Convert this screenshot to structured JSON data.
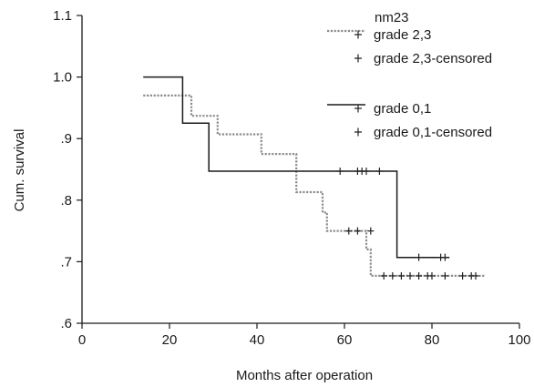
{
  "chart_data": {
    "type": "line",
    "subtype": "kaplan-meier step survival curves",
    "xlabel": "Months after operation",
    "ylabel": "Cum. survival",
    "xlim": [
      0,
      100
    ],
    "ylim": [
      0.6,
      1.1
    ],
    "x_ticks": [
      0,
      20,
      40,
      60,
      80,
      100
    ],
    "x_tick_labels": [
      "0",
      "20",
      "40",
      "60",
      "80",
      "100"
    ],
    "y_ticks": [
      0.6,
      0.7,
      0.8,
      0.9,
      1.0,
      1.1
    ],
    "y_tick_labels": [
      ".6",
      ".7",
      ".8",
      ".9",
      "1.0",
      "1.1"
    ],
    "grid": false,
    "legend": {
      "title": "nm23",
      "position": "top-right",
      "entries": [
        "grade 2,3",
        "grade 2,3-censored",
        "grade 0,1",
        "grade 0,1-censored"
      ]
    },
    "series": [
      {
        "name": "grade 2,3",
        "line_style": "dotted",
        "color": "#8c8c8c",
        "steps": [
          [
            14,
            0.97
          ],
          [
            25,
            0.97
          ],
          [
            25,
            0.937
          ],
          [
            31,
            0.937
          ],
          [
            31,
            0.907
          ],
          [
            41,
            0.907
          ],
          [
            41,
            0.875
          ],
          [
            49,
            0.875
          ],
          [
            49,
            0.813
          ],
          [
            55,
            0.813
          ],
          [
            55,
            0.78
          ],
          [
            56,
            0.78
          ],
          [
            56,
            0.75
          ],
          [
            65,
            0.75
          ],
          [
            65,
            0.72
          ],
          [
            66,
            0.72
          ],
          [
            66,
            0.677
          ],
          [
            92,
            0.677
          ]
        ],
        "censored": [
          [
            61,
            0.75
          ],
          [
            63,
            0.75
          ],
          [
            66,
            0.75
          ],
          [
            69,
            0.677
          ],
          [
            71,
            0.677
          ],
          [
            73,
            0.677
          ],
          [
            75,
            0.677
          ],
          [
            77,
            0.677
          ],
          [
            79,
            0.677
          ],
          [
            80,
            0.677
          ],
          [
            83,
            0.677
          ],
          [
            87,
            0.677
          ],
          [
            89,
            0.677
          ],
          [
            90,
            0.677
          ]
        ]
      },
      {
        "name": "grade 0,1",
        "line_style": "solid",
        "color": "#1a1a1a",
        "steps": [
          [
            14,
            1.0
          ],
          [
            23,
            1.0
          ],
          [
            23,
            0.925
          ],
          [
            29,
            0.925
          ],
          [
            29,
            0.847
          ],
          [
            72,
            0.847
          ],
          [
            72,
            0.707
          ],
          [
            84,
            0.707
          ]
        ],
        "censored": [
          [
            59,
            0.847
          ],
          [
            63,
            0.847
          ],
          [
            64,
            0.847
          ],
          [
            65,
            0.847
          ],
          [
            68,
            0.847
          ],
          [
            77,
            0.707
          ],
          [
            82,
            0.707
          ],
          [
            83,
            0.707
          ]
        ]
      }
    ]
  }
}
